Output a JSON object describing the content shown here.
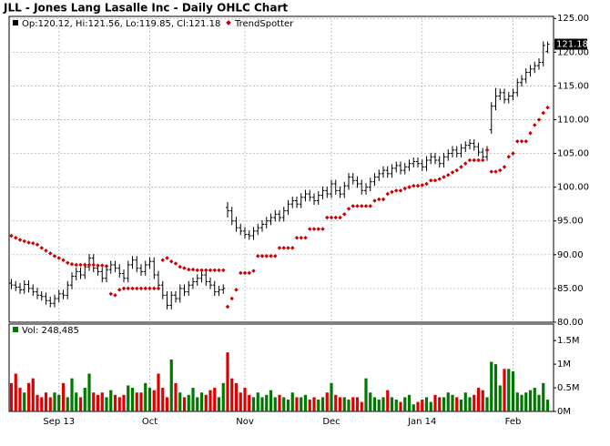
{
  "title": "JLL - Jones Lang Lasalle Inc - Daily OHLC Chart",
  "chart_data": [
    {
      "type": "ohlc",
      "legend_text": "Op:120.12, Hi:121.56, Lo:119.85, Cl:121.18",
      "last_label": "121.18",
      "grid": true,
      "bar_color": "#000000",
      "categories": [
        null,
        null,
        null,
        null,
        null,
        null,
        null,
        null,
        null,
        null,
        null,
        "Sep 13",
        null,
        null,
        null,
        null,
        null,
        null,
        null,
        null,
        null,
        null,
        null,
        null,
        null,
        null,
        null,
        null,
        null,
        null,
        null,
        null,
        "Oct",
        null,
        null,
        null,
        null,
        null,
        null,
        null,
        null,
        null,
        null,
        null,
        null,
        null,
        null,
        null,
        null,
        null,
        null,
        null,
        null,
        null,
        "Nov",
        null,
        null,
        null,
        null,
        null,
        null,
        null,
        null,
        null,
        null,
        null,
        null,
        null,
        null,
        null,
        null,
        null,
        null,
        null,
        "Dec",
        null,
        null,
        null,
        null,
        null,
        null,
        null,
        null,
        null,
        null,
        null,
        null,
        null,
        null,
        null,
        null,
        null,
        null,
        null,
        null,
        "Jan 14",
        null,
        null,
        null,
        null,
        null,
        null,
        null,
        null,
        null,
        null,
        null,
        null,
        null,
        null,
        null,
        null,
        null,
        null,
        null,
        null,
        "Feb",
        null,
        null,
        null,
        null,
        null,
        null,
        null,
        null
      ],
      "open": [
        85.8,
        85.5,
        85.2,
        84.8,
        85.6,
        85.0,
        84.5,
        84.0,
        83.8,
        83.2,
        82.8,
        83.5,
        84.2,
        84.0,
        85.5,
        86.8,
        87.5,
        87.0,
        88.2,
        89.5,
        88.0,
        87.5,
        86.5,
        87.8,
        88.5,
        88.0,
        87.2,
        86.5,
        88.5,
        89.2,
        88.0,
        87.5,
        88.5,
        89.0,
        87.0,
        85.5,
        84.0,
        82.5,
        84.0,
        83.5,
        85.0,
        84.5,
        85.5,
        86.0,
        86.5,
        87.0,
        86.0,
        85.5,
        84.5,
        84.8,
        97.0,
        96.5,
        95.0,
        94.0,
        93.5,
        93.0,
        92.8,
        93.5,
        94.0,
        94.5,
        95.0,
        95.5,
        96.0,
        95.5,
        96.5,
        97.5,
        98.0,
        97.5,
        98.5,
        99.0,
        98.5,
        98.0,
        98.8,
        99.5,
        99.0,
        100.5,
        99.5,
        99.0,
        100.2,
        101.5,
        101.0,
        100.5,
        99.5,
        100.0,
        100.8,
        101.5,
        102.0,
        102.5,
        102.0,
        102.8,
        103.2,
        102.5,
        103.0,
        103.5,
        103.8,
        103.5,
        103.0,
        104.0,
        104.5,
        104.0,
        103.5,
        104.5,
        105.0,
        105.5,
        105.0,
        105.8,
        106.2,
        106.5,
        106.0,
        105.2,
        104.5,
        108.5,
        112.0,
        113.5,
        114.0,
        113.0,
        113.5,
        114.0,
        115.5,
        116.0,
        117.0,
        117.5,
        118.0,
        118.5,
        120.12
      ],
      "high": [
        86.4,
        86.1,
        85.8,
        86.2,
        86.2,
        85.6,
        85.1,
        84.6,
        84.4,
        83.8,
        84.1,
        84.8,
        84.8,
        86.1,
        87.4,
        88.1,
        88.1,
        88.8,
        90.1,
        90.1,
        88.6,
        88.1,
        88.4,
        89.1,
        89.1,
        88.6,
        87.8,
        89.1,
        89.8,
        89.8,
        88.6,
        89.1,
        89.6,
        89.6,
        87.6,
        86.1,
        84.6,
        84.6,
        84.6,
        85.6,
        85.6,
        86.1,
        86.6,
        87.1,
        87.6,
        87.6,
        86.6,
        86.1,
        85.4,
        85.6,
        97.8,
        97.1,
        95.6,
        94.6,
        94.1,
        93.6,
        94.1,
        94.6,
        95.1,
        95.6,
        96.1,
        96.6,
        96.6,
        97.1,
        98.1,
        98.6,
        98.6,
        99.1,
        99.6,
        99.6,
        99.1,
        99.4,
        100.1,
        100.1,
        101.1,
        101.1,
        100.1,
        100.8,
        102.1,
        102.1,
        101.6,
        101.1,
        100.6,
        101.4,
        102.1,
        102.6,
        103.1,
        103.1,
        103.4,
        103.8,
        103.8,
        103.6,
        104.1,
        104.4,
        104.4,
        104.1,
        104.6,
        105.1,
        105.1,
        104.6,
        105.1,
        105.6,
        106.1,
        106.1,
        106.4,
        106.8,
        107.1,
        107.1,
        106.6,
        105.8,
        106.1,
        112.6,
        114.7,
        114.6,
        114.6,
        114.1,
        114.6,
        116.1,
        116.6,
        117.6,
        118.1,
        118.6,
        119.1,
        121.6,
        121.56
      ],
      "low": [
        84.9,
        84.6,
        84.2,
        84.2,
        84.4,
        83.9,
        83.4,
        83.2,
        82.6,
        82.2,
        82.2,
        82.9,
        83.4,
        83.4,
        84.9,
        86.2,
        86.4,
        86.4,
        87.6,
        87.4,
        86.9,
        85.9,
        85.9,
        87.2,
        87.4,
        86.6,
        85.9,
        85.9,
        87.9,
        87.4,
        86.9,
        86.9,
        87.9,
        86.4,
        84.9,
        83.4,
        81.9,
        81.9,
        82.9,
        82.9,
        83.9,
        83.9,
        84.9,
        85.4,
        85.9,
        85.4,
        84.9,
        83.9,
        83.9,
        84.2,
        95.5,
        94.4,
        93.4,
        92.9,
        92.4,
        92.2,
        92.2,
        92.9,
        93.4,
        93.9,
        94.4,
        94.9,
        94.9,
        94.9,
        95.9,
        96.9,
        96.9,
        96.9,
        97.9,
        97.9,
        97.4,
        97.4,
        98.2,
        98.4,
        98.4,
        98.9,
        98.4,
        98.4,
        99.6,
        100.4,
        99.9,
        98.9,
        98.9,
        99.4,
        100.2,
        100.9,
        101.4,
        101.4,
        101.4,
        102.2,
        101.9,
        101.9,
        102.4,
        102.9,
        102.9,
        102.4,
        102.4,
        103.4,
        103.4,
        102.9,
        102.9,
        103.9,
        104.4,
        104.4,
        104.4,
        105.2,
        105.6,
        105.4,
        104.6,
        103.9,
        103.9,
        107.9,
        111.4,
        112.9,
        112.4,
        112.4,
        112.9,
        113.4,
        114.9,
        115.4,
        116.4,
        116.9,
        117.4,
        117.9,
        119.85
      ],
      "close": [
        85.5,
        85.2,
        84.8,
        85.6,
        85.0,
        84.5,
        84.0,
        83.8,
        83.2,
        82.8,
        83.5,
        84.2,
        84.0,
        85.5,
        86.8,
        87.5,
        87.0,
        88.2,
        89.5,
        88.0,
        87.5,
        86.5,
        87.8,
        88.5,
        88.0,
        87.2,
        86.5,
        88.5,
        89.2,
        88.0,
        87.5,
        88.5,
        89.0,
        87.0,
        85.5,
        84.0,
        82.5,
        84.0,
        83.5,
        85.0,
        84.5,
        85.5,
        86.0,
        86.5,
        87.0,
        86.0,
        85.5,
        84.5,
        84.8,
        85.0,
        96.5,
        95.0,
        94.0,
        93.5,
        93.0,
        92.8,
        93.5,
        94.0,
        94.5,
        95.0,
        95.5,
        96.0,
        95.5,
        96.5,
        97.5,
        98.0,
        97.5,
        98.5,
        99.0,
        98.5,
        98.0,
        98.8,
        99.5,
        99.0,
        100.5,
        99.5,
        99.0,
        100.2,
        101.5,
        101.0,
        100.5,
        99.5,
        100.0,
        100.8,
        101.5,
        102.0,
        102.5,
        102.0,
        102.8,
        103.2,
        102.5,
        103.0,
        103.5,
        103.8,
        103.5,
        103.0,
        104.0,
        104.5,
        104.0,
        103.5,
        104.5,
        105.0,
        105.5,
        105.0,
        105.8,
        106.2,
        106.5,
        106.0,
        105.2,
        104.5,
        105.5,
        112.0,
        113.5,
        114.0,
        113.0,
        113.5,
        114.0,
        115.5,
        116.0,
        117.0,
        117.5,
        118.0,
        118.5,
        121.0,
        121.18
      ],
      "series": [
        {
          "name": "TrendSpotter",
          "color": "#cc0000",
          "values": [
            92.8,
            92.5,
            92.2,
            92.0,
            91.8,
            91.7,
            91.5,
            91.0,
            90.6,
            90.2,
            89.8,
            89.5,
            89.2,
            88.8,
            88.6,
            88.5,
            88.5,
            88.5,
            88.5,
            88.5,
            88.4,
            88.4,
            88.3,
            84.2,
            84.0,
            84.8,
            85.0,
            85.0,
            85.0,
            85.0,
            85.0,
            85.0,
            85.0,
            85.0,
            85.0,
            89.2,
            89.5,
            89.0,
            88.7,
            88.2,
            88.0,
            87.8,
            87.8,
            87.7,
            87.7,
            87.7,
            87.7,
            87.7,
            87.7,
            87.7,
            82.3,
            83.5,
            84.8,
            87.3,
            87.3,
            87.3,
            87.6,
            89.8,
            89.8,
            89.8,
            89.8,
            89.8,
            91.0,
            91.0,
            91.0,
            91.0,
            92.5,
            92.5,
            92.5,
            93.8,
            93.8,
            93.8,
            93.8,
            95.5,
            95.5,
            95.5,
            95.5,
            96.0,
            96.8,
            97.2,
            97.2,
            97.2,
            97.2,
            97.2,
            98.0,
            98.2,
            98.2,
            99.0,
            99.3,
            99.5,
            99.5,
            99.8,
            100.0,
            100.2,
            100.2,
            100.3,
            100.5,
            101.0,
            101.0,
            101.2,
            101.5,
            101.8,
            102.2,
            102.5,
            103.0,
            103.5,
            104.0,
            104.0,
            104.0,
            104.0,
            105.5,
            102.3,
            102.3,
            102.5,
            103.0,
            104.5,
            105.0,
            106.8,
            106.8,
            106.8,
            108.0,
            109.2,
            110.0,
            111.0,
            111.8
          ]
        }
      ],
      "ylim": [
        80,
        125.3
      ],
      "yticks": [
        {
          "value": 80,
          "label": "80.00"
        },
        {
          "value": 85,
          "label": "85.00"
        },
        {
          "value": 90,
          "label": "90.00"
        },
        {
          "value": 95,
          "label": "95.00"
        },
        {
          "value": 100,
          "label": "100.00"
        },
        {
          "value": 105,
          "label": "105.00"
        },
        {
          "value": 110,
          "label": "110.00"
        },
        {
          "value": 115,
          "label": "115.00"
        },
        {
          "value": 120,
          "label": "120.00"
        },
        {
          "value": 125,
          "label": "125.00"
        }
      ]
    },
    {
      "type": "bar",
      "legend_text": "Vol: 248,485",
      "up_color": "#007700",
      "down_color": "#dd0000",
      "values": [
        0.6,
        0.8,
        0.5,
        0.4,
        0.6,
        0.7,
        0.35,
        0.3,
        0.4,
        0.3,
        0.4,
        0.35,
        0.6,
        0.3,
        0.7,
        0.4,
        0.3,
        0.5,
        0.8,
        0.4,
        0.35,
        0.4,
        0.3,
        0.45,
        0.35,
        0.3,
        0.35,
        0.55,
        0.5,
        0.4,
        0.4,
        0.6,
        0.5,
        0.45,
        0.8,
        0.5,
        0.3,
        1.1,
        0.6,
        0.4,
        0.3,
        0.35,
        0.5,
        0.3,
        0.4,
        0.35,
        0.45,
        0.5,
        0.3,
        0.6,
        1.25,
        0.7,
        0.6,
        0.4,
        0.5,
        0.35,
        0.3,
        0.4,
        0.3,
        0.35,
        0.45,
        0.3,
        0.35,
        0.3,
        0.25,
        0.4,
        0.3,
        0.3,
        0.35,
        0.25,
        0.3,
        0.25,
        0.3,
        0.4,
        0.6,
        0.35,
        0.3,
        0.3,
        0.25,
        0.3,
        0.3,
        0.2,
        0.7,
        0.4,
        0.3,
        0.25,
        0.3,
        0.45,
        0.3,
        0.25,
        0.2,
        0.3,
        0.35,
        0.15,
        0.2,
        0.25,
        0.3,
        0.2,
        0.35,
        0.3,
        0.3,
        0.4,
        0.35,
        0.3,
        0.25,
        0.4,
        0.3,
        0.35,
        0.5,
        0.45,
        0.3,
        1.05,
        1.0,
        0.55,
        0.9,
        0.9,
        0.85,
        0.4,
        0.35,
        0.4,
        0.45,
        0.5,
        0.35,
        0.6,
        0.248485
      ],
      "ylim": [
        0,
        1.85
      ],
      "yticks": [
        {
          "value": 0,
          "label": "0M"
        },
        {
          "value": 0.5,
          "label": "0.5M"
        },
        {
          "value": 1,
          "label": "1M"
        },
        {
          "value": 1.5,
          "label": "1.5M"
        }
      ]
    }
  ]
}
